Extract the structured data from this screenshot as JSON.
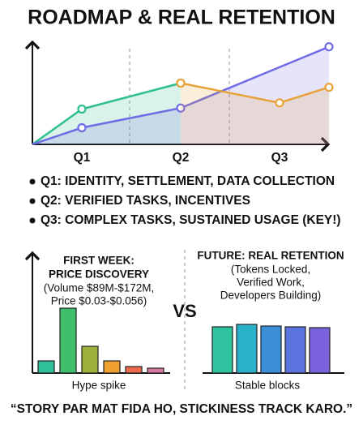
{
  "title": "ROADMAP & REAL RETENTION",
  "chart_data": [
    {
      "type": "line",
      "categories": [
        "Q1",
        "Q2",
        "Q3"
      ],
      "xlim": [
        0,
        3
      ],
      "ylim": [
        0,
        100
      ],
      "series": [
        {
          "color": "#2fbf8a",
          "x": [
            0,
            0.5,
            1.5
          ],
          "values": [
            0,
            34,
            59
          ]
        },
        {
          "color": "#6f6be6",
          "x": [
            0,
            0.5,
            1.5,
            3
          ],
          "values": [
            0,
            16,
            35,
            94
          ]
        },
        {
          "color": "#e8a23a",
          "x": [
            1.5,
            2.5,
            3
          ],
          "values": [
            59,
            40,
            55
          ]
        }
      ]
    },
    {
      "type": "bar",
      "title": [
        "FIRST WEEK:",
        "PRICE DISCOVERY"
      ],
      "subtitle": [
        "(Volume $89M-$172M,",
        "Price $0.03-$0.056)"
      ],
      "caption": "Hype spike",
      "ylim": [
        0,
        100
      ],
      "values": [
        15,
        80,
        33,
        15,
        8,
        6
      ],
      "colors": [
        "#2fbf9a",
        "#3fbf6a",
        "#9bb13a",
        "#f0a030",
        "#ef6a4a",
        "#d87aa0"
      ]
    },
    {
      "type": "bar",
      "title": [
        "FUTURE: REAL RETENTION"
      ],
      "subtitle": [
        "(Tokens Locked,",
        "Verified Work,",
        "Developers Building)"
      ],
      "caption": "Stable blocks",
      "ylim": [
        0,
        100
      ],
      "values": [
        57,
        60,
        58,
        57,
        56
      ],
      "colors": [
        "#2fc3a0",
        "#2ab0c8",
        "#3a8fd8",
        "#5c74dd",
        "#7a62dc"
      ]
    }
  ],
  "bullets": [
    "Q1: IDENTITY, SETTLEMENT, DATA COLLECTION",
    "Q2: VERIFIED TASKS, INCENTIVES",
    "Q3: COMPLEX TASKS, SUSTAINED USAGE (KEY!)"
  ],
  "vs": "VS",
  "footer": "“STORY PAR MAT FIDA HO, STICKINESS TRACK KARO.”"
}
